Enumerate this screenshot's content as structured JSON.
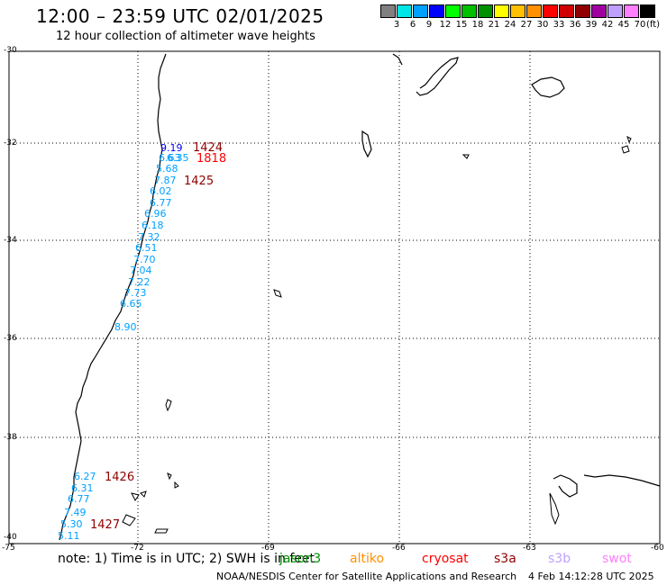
{
  "title": "12:00 – 23:59 UTC 02/01/2025",
  "subtitle": "12 hour collection of altimeter wave heights",
  "legend": {
    "colors": [
      "#808080",
      "#00e5e5",
      "#00a0ff",
      "#0000ff",
      "#00ff00",
      "#00c000",
      "#009000",
      "#ffff00",
      "#ffc000",
      "#ff9000",
      "#ff0000",
      "#d00000",
      "#900000",
      "#a000a0",
      "#c0a0ff",
      "#ff80ff",
      "#000000"
    ],
    "labels": [
      "3",
      "6",
      "9",
      "12",
      "15",
      "18",
      "21",
      "24",
      "27",
      "30",
      "33",
      "36",
      "39",
      "42",
      "45",
      "70"
    ],
    "unit": "(ft)"
  },
  "axes": {
    "lat_labels": [
      "-30",
      "-32",
      "-34",
      "-36",
      "-38",
      "-40"
    ],
    "lon_labels": [
      "-75",
      "-72",
      "-69",
      "-66",
      "-63",
      "-60"
    ]
  },
  "wave_heights": [
    {
      "text": "9.19",
      "color": "#0000ff"
    },
    {
      "text": "6.35",
      "color": "#00a0ff"
    },
    {
      "text": "6.63",
      "color": "#00a0ff"
    },
    {
      "text": "5.68",
      "color": "#00a0ff"
    },
    {
      "text": "7.87",
      "color": "#00a0ff"
    },
    {
      "text": "6.02",
      "color": "#00a0ff"
    },
    {
      "text": "6.77",
      "color": "#00a0ff"
    },
    {
      "text": "6.96",
      "color": "#00a0ff"
    },
    {
      "text": "6.18",
      "color": "#00a0ff"
    },
    {
      "text": "7.32",
      "color": "#00a0ff"
    },
    {
      "text": "6.51",
      "color": "#00a0ff"
    },
    {
      "text": "7.70",
      "color": "#00a0ff"
    },
    {
      "text": "7.04",
      "color": "#00a0ff"
    },
    {
      "text": "7.22",
      "color": "#00a0ff"
    },
    {
      "text": "7.73",
      "color": "#00a0ff"
    },
    {
      "text": "6.65",
      "color": "#00a0ff"
    },
    {
      "text": "8.90",
      "color": "#00a0ff"
    },
    {
      "text": "6.27",
      "color": "#00a0ff"
    },
    {
      "text": "6.31",
      "color": "#00a0ff"
    },
    {
      "text": "6.77",
      "color": "#00a0ff"
    },
    {
      "text": "7.49",
      "color": "#00a0ff"
    },
    {
      "text": "5.30",
      "color": "#00a0ff"
    },
    {
      "text": "5.11",
      "color": "#00a0ff"
    }
  ],
  "time_labels": [
    {
      "text": "1424",
      "color": "#900000"
    },
    {
      "text": "1818",
      "color": "#ff0000"
    },
    {
      "text": "1425",
      "color": "#900000"
    },
    {
      "text": "1426",
      "color": "#900000"
    },
    {
      "text": "1427",
      "color": "#900000"
    }
  ],
  "note": "note:  1) Time is in UTC;  2) SWH is in feet",
  "satellites": [
    {
      "name": "jason3",
      "color": "#009000"
    },
    {
      "name": "altiko",
      "color": "#ff9000"
    },
    {
      "name": "cryosat",
      "color": "#ff0000"
    },
    {
      "name": "s3a",
      "color": "#900000"
    },
    {
      "name": "s3b",
      "color": "#c0a0ff"
    },
    {
      "name": "swot",
      "color": "#ff80ff"
    }
  ],
  "footer": "NOAA/NESDIS Center for Satellite Applications and Research",
  "footer_date": "4 Feb 14:12:28 UTC 2025"
}
